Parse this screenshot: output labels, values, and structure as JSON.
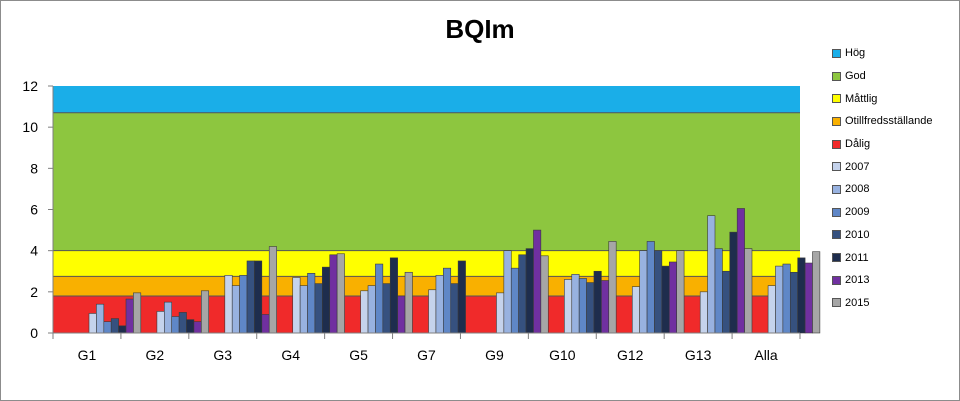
{
  "chart_data": {
    "type": "bar",
    "title": "BQIm",
    "xlabel": "",
    "ylabel": "",
    "ylim": [
      0,
      12
    ],
    "yticks": [
      0,
      2,
      4,
      6,
      8,
      10,
      12
    ],
    "grid": false,
    "legend_position": "right",
    "categories": [
      "G1",
      "G2",
      "G3",
      "G4",
      "G5",
      "G7",
      "G9",
      "G10",
      "G12",
      "G13",
      "Alla"
    ],
    "bands": [
      {
        "name": "Hög",
        "from": 10.7,
        "to": 12,
        "color": "#1aaee8"
      },
      {
        "name": "God",
        "from": 4.0,
        "to": 10.7,
        "color": "#8dc63f"
      },
      {
        "name": "Måttlig",
        "from": 2.75,
        "to": 4.0,
        "color": "#ffff00"
      },
      {
        "name": "Otillfredsställande",
        "from": 1.8,
        "to": 2.75,
        "color": "#f9b000"
      },
      {
        "name": "Dålig",
        "from": 0,
        "to": 1.8,
        "color": "#f02a2a"
      }
    ],
    "series": [
      {
        "name": "2007",
        "color": "#c5d3ec",
        "values": [
          0.95,
          1.05,
          2.8,
          2.7,
          2.05,
          2.1,
          1.95,
          2.6,
          2.25,
          2.0,
          2.3
        ]
      },
      {
        "name": "2008",
        "color": "#98b2e0",
        "values": [
          1.4,
          1.5,
          2.3,
          2.3,
          2.3,
          2.8,
          4.0,
          2.85,
          4.0,
          5.7,
          3.25
        ]
      },
      {
        "name": "2009",
        "color": "#5f87c7",
        "values": [
          0.55,
          0.8,
          2.8,
          2.9,
          3.35,
          3.15,
          3.15,
          2.65,
          4.45,
          4.1,
          3.35
        ]
      },
      {
        "name": "2010",
        "color": "#36517f",
        "values": [
          0.7,
          1.0,
          3.5,
          2.4,
          2.4,
          2.4,
          3.8,
          2.45,
          4.0,
          3.0,
          2.95
        ]
      },
      {
        "name": "2011",
        "color": "#1e2d4d",
        "values": [
          0.35,
          0.65,
          3.5,
          3.2,
          3.65,
          3.5,
          4.1,
          3.0,
          3.25,
          4.9,
          3.65
        ]
      },
      {
        "name": "2013",
        "color": "#7030a0",
        "values": [
          1.65,
          0.55,
          0.9,
          3.8,
          1.8,
          null,
          5.0,
          2.55,
          3.45,
          6.05,
          3.4
        ]
      },
      {
        "name": "2015",
        "color": "#a6a6a6",
        "values": [
          1.95,
          2.05,
          4.2,
          3.85,
          2.95,
          null,
          3.75,
          4.45,
          4.0,
          4.1,
          3.95
        ]
      }
    ]
  }
}
